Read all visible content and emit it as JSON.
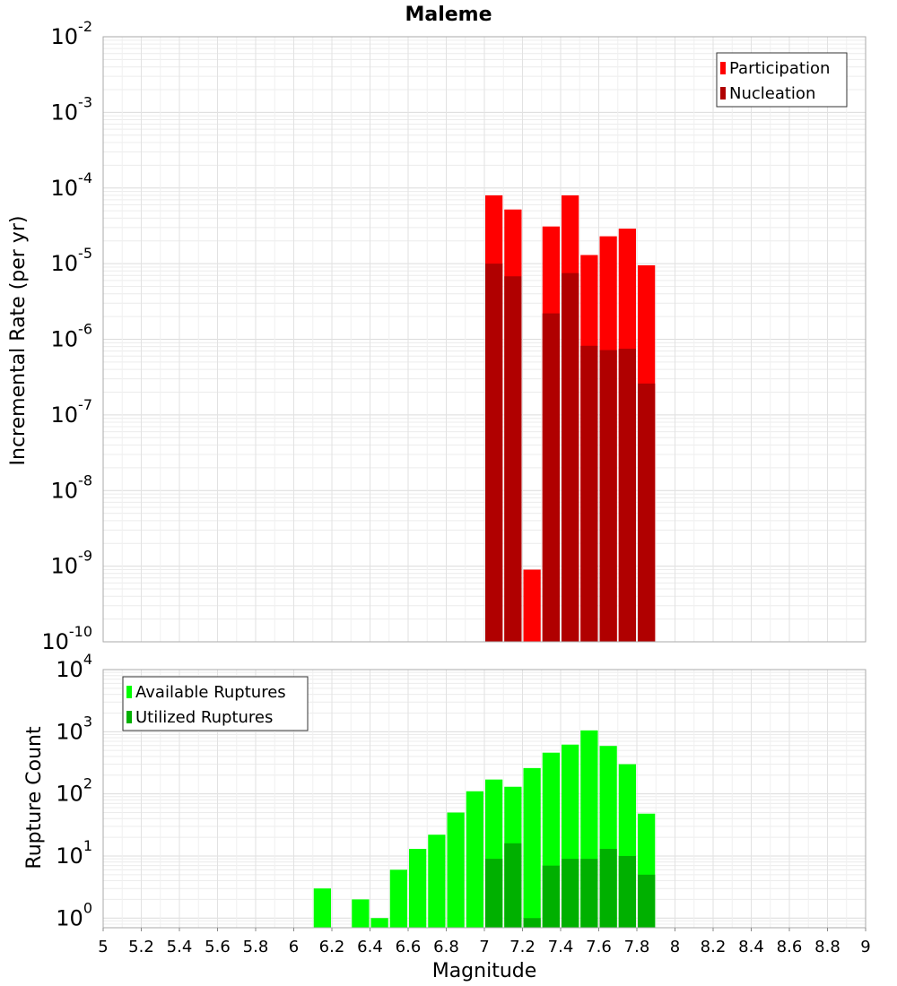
{
  "chart_data": [
    {
      "type": "bar",
      "title": "Maleme",
      "ylabel": "Incremental Rate (per yr)",
      "xlabel": "",
      "x_range": [
        5,
        9
      ],
      "bin_width": 0.1,
      "y_scale": "log",
      "ylim": [
        1e-10,
        0.01
      ],
      "y_ticks": [
        {
          "base": "10",
          "exp": "-2"
        },
        {
          "base": "10",
          "exp": "-3"
        },
        {
          "base": "10",
          "exp": "-4"
        },
        {
          "base": "10",
          "exp": "-5"
        },
        {
          "base": "10",
          "exp": "-6"
        },
        {
          "base": "10",
          "exp": "-7"
        },
        {
          "base": "10",
          "exp": "-8"
        },
        {
          "base": "10",
          "exp": "-9"
        },
        {
          "base": "10",
          "exp": "-10"
        }
      ],
      "grid": true,
      "legend_position": "top-right",
      "series": [
        {
          "name": "Participation",
          "color": "#ff0000",
          "x": [
            7.05,
            7.15,
            7.25,
            7.35,
            7.45,
            7.55,
            7.65,
            7.75,
            7.85
          ],
          "values": [
            8e-05,
            5.2e-05,
            9e-10,
            3.1e-05,
            8e-05,
            1.3e-05,
            2.3e-05,
            2.9e-05,
            9.5e-06
          ]
        },
        {
          "name": "Nucleation",
          "color": "#b00000",
          "x": [
            7.05,
            7.15,
            7.35,
            7.45,
            7.55,
            7.65,
            7.75,
            7.85
          ],
          "values": [
            1e-05,
            6.8e-06,
            2.2e-06,
            7.5e-06,
            8.2e-07,
            7.2e-07,
            7.5e-07,
            2.6e-07
          ]
        }
      ]
    },
    {
      "type": "bar",
      "xlabel": "Magnitude",
      "ylabel": "Rupture Count",
      "x_range": [
        5,
        9
      ],
      "x_ticks": [
        "5",
        "5.2",
        "5.4",
        "5.6",
        "5.8",
        "6",
        "6.2",
        "6.4",
        "6.6",
        "6.8",
        "7",
        "7.2",
        "7.4",
        "7.6",
        "7.8",
        "8",
        "8.2",
        "8.4",
        "8.6",
        "8.8",
        "9"
      ],
      "bin_width": 0.1,
      "y_scale": "log",
      "ylim": [
        0.7,
        10000
      ],
      "y_ticks": [
        {
          "base": "10",
          "exp": "4"
        },
        {
          "base": "10",
          "exp": "3"
        },
        {
          "base": "10",
          "exp": "2"
        },
        {
          "base": "10",
          "exp": "1"
        },
        {
          "base": "10",
          "exp": "0"
        }
      ],
      "grid": true,
      "legend_position": "top-left",
      "series": [
        {
          "name": "Available Ruptures",
          "color": "#00ff00",
          "x": [
            6.15,
            6.35,
            6.45,
            6.55,
            6.65,
            6.75,
            6.85,
            6.95,
            7.05,
            7.15,
            7.25,
            7.35,
            7.45,
            7.55,
            7.65,
            7.75,
            7.85
          ],
          "values": [
            3,
            2,
            1,
            6,
            13,
            22,
            50,
            110,
            170,
            130,
            260,
            460,
            620,
            1050,
            590,
            300,
            48
          ]
        },
        {
          "name": "Utilized Ruptures",
          "color": "#00b000",
          "x": [
            7.05,
            7.15,
            7.25,
            7.35,
            7.45,
            7.55,
            7.65,
            7.75,
            7.85
          ],
          "values": [
            9,
            16,
            1,
            7,
            9,
            9,
            13,
            10,
            5
          ]
        }
      ]
    }
  ]
}
